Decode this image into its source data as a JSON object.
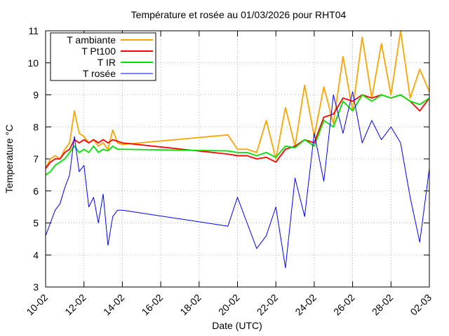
{
  "chart_data": {
    "type": "line",
    "title": "Température et rosée au 01/03/2026 pour RHT04",
    "x_label": "Date (UTC)",
    "y_label": "Temperature °C",
    "x": [
      "10-02 00:00",
      "10-02 06:00",
      "10-02 12:00",
      "10-02 18:00",
      "11-02 00:00",
      "11-02 06:00",
      "11-02 12:00",
      "11-02 18:00",
      "12-02 00:00",
      "12-02 06:00",
      "12-02 12:00",
      "12-02 18:00",
      "13-02 00:00",
      "13-02 06:00",
      "13-02 12:00",
      "13-02 18:00",
      "14-02 00:00",
      "19-02 12:00",
      "20-02 00:00",
      "20-02 12:00",
      "21-02 00:00",
      "21-02 12:00",
      "22-02 00:00",
      "22-02 12:00",
      "23-02 00:00",
      "23-02 12:00",
      "24-02 00:00",
      "24-02 12:00",
      "25-02 00:00",
      "25-02 12:00",
      "26-02 00:00",
      "26-02 12:00",
      "27-02 00:00",
      "27-02 12:00",
      "28-02 00:00",
      "28-02 12:00",
      "01-03 00:00",
      "01-03 12:00",
      "02-03 00:00"
    ],
    "series": [
      {
        "name": "T ambiante",
        "color": "#ffa500",
        "values": [
          6.7,
          7.0,
          7.1,
          7.0,
          7.3,
          7.5,
          8.5,
          7.8,
          7.7,
          7.5,
          7.6,
          7.4,
          7.5,
          7.3,
          7.9,
          7.5,
          7.45,
          7.75,
          7.3,
          7.3,
          7.2,
          8.2,
          7.0,
          8.6,
          7.4,
          9.3,
          7.7,
          9.25,
          8.1,
          10.2,
          8.5,
          10.8,
          8.9,
          10.6,
          9.0,
          11.0,
          8.9,
          9.8,
          9.1
        ]
      },
      {
        "name": "T Pt100",
        "color": "#ff0000",
        "values": [
          6.7,
          6.9,
          7.0,
          7.0,
          7.2,
          7.3,
          7.6,
          7.5,
          7.6,
          7.5,
          7.6,
          7.5,
          7.6,
          7.5,
          7.6,
          7.55,
          7.5,
          7.15,
          7.1,
          7.1,
          7.0,
          7.05,
          6.9,
          7.3,
          7.4,
          7.6,
          7.5,
          8.3,
          8.4,
          8.9,
          8.8,
          9.0,
          8.9,
          9.0,
          8.9,
          9.0,
          8.8,
          8.5,
          8.9
        ]
      },
      {
        "name": "T IR",
        "color": "#00e000",
        "values": [
          6.5,
          6.6,
          6.8,
          6.9,
          7.0,
          7.2,
          7.4,
          7.2,
          7.3,
          7.2,
          7.4,
          7.2,
          7.3,
          7.25,
          7.4,
          7.3,
          7.3,
          7.25,
          7.2,
          7.2,
          7.1,
          7.2,
          7.05,
          7.4,
          7.35,
          7.6,
          7.4,
          8.2,
          8.0,
          8.8,
          8.5,
          9.0,
          8.8,
          9.0,
          8.9,
          9.0,
          8.8,
          8.7,
          8.9
        ]
      },
      {
        "name": "T rosée",
        "color": "#0000ff",
        "values": [
          4.6,
          5.0,
          5.4,
          5.6,
          6.1,
          6.5,
          7.7,
          6.6,
          6.8,
          5.5,
          5.8,
          5.0,
          5.9,
          4.3,
          5.2,
          5.4,
          5.4,
          4.9,
          5.8,
          5.0,
          4.2,
          4.6,
          5.5,
          3.6,
          6.4,
          5.2,
          7.8,
          6.3,
          9.0,
          7.8,
          9.1,
          7.5,
          8.2,
          7.6,
          8.0,
          7.5,
          5.8,
          4.4,
          6.7
        ]
      }
    ],
    "xlim": [
      "10-02 00:00",
      "02-03 00:00"
    ],
    "xticks": [
      {
        "value": "10-02 00:00",
        "label": "10-02"
      },
      {
        "value": "12-02 00:00",
        "label": "12-02"
      },
      {
        "value": "14-02 00:00",
        "label": "14-02"
      },
      {
        "value": "16-02 00:00",
        "label": "16-02"
      },
      {
        "value": "18-02 00:00",
        "label": "18-02"
      },
      {
        "value": "20-02 00:00",
        "label": "20-02"
      },
      {
        "value": "22-02 00:00",
        "label": "22-02"
      },
      {
        "value": "24-02 00:00",
        "label": "24-02"
      },
      {
        "value": "26-02 00:00",
        "label": "26-02"
      },
      {
        "value": "28-02 00:00",
        "label": "28-02"
      },
      {
        "value": "02-03 00:00",
        "label": "02-03"
      }
    ],
    "ylim": [
      3,
      11
    ],
    "yticks": [
      3,
      4,
      5,
      6,
      7,
      8,
      9,
      10,
      11
    ],
    "grid": true,
    "legend": "top-left"
  }
}
